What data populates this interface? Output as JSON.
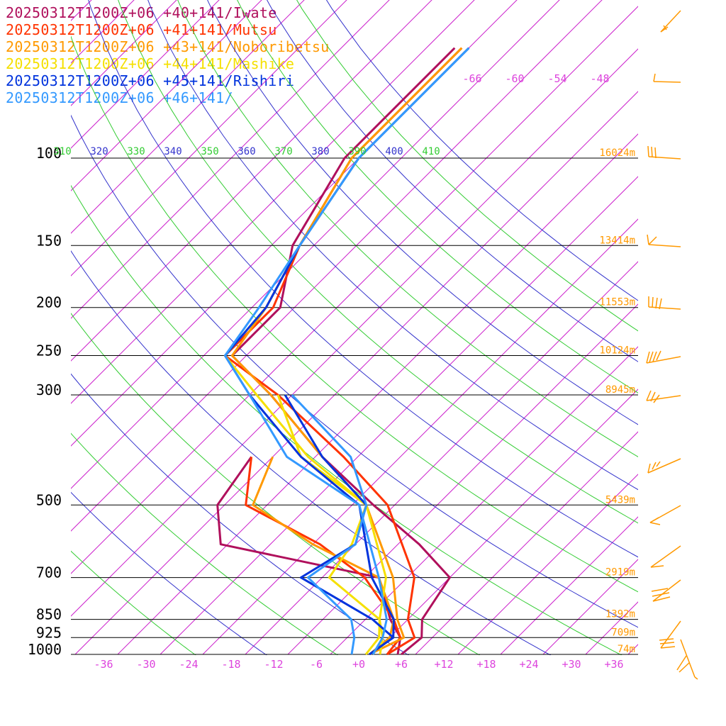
{
  "legend": [
    {
      "label": "20250312T1200Z+06 +40+141/Iwate",
      "color": "#b0105c"
    },
    {
      "label": "20250312T1200Z+06 +41+141/Mutsu",
      "color": "#ff3300"
    },
    {
      "label": "20250312T1200Z+06 +43+141/Noboribetsu",
      "color": "#ff9900"
    },
    {
      "label": "20250312T1200Z+06 +44+141/Mashike",
      "color": "#f5e000"
    },
    {
      "label": "20250312T1200Z+06 +45+141/Rishiri",
      "color": "#0033dd"
    },
    {
      "label": "20250312T1200Z+06 +46+141/",
      "color": "#3399ff"
    }
  ],
  "chart_data": {
    "type": "line",
    "xlabel": "",
    "ylabel": "",
    "pressure_levels": [
      "100",
      "150",
      "200",
      "250",
      "300",
      "500",
      "700",
      "850",
      "925",
      "1000"
    ],
    "temperature_ticks": [
      "-36",
      "-30",
      "-24",
      "-18",
      "-12",
      "-6",
      "+0",
      "+6",
      "+12",
      "+18",
      "+24",
      "+30",
      "+36"
    ],
    "upper_isotherm_labels": [
      "-66",
      "-60",
      "-54",
      "-48"
    ],
    "theta_labels": [
      {
        "text": "310",
        "color": "#33cc33"
      },
      {
        "text": "320",
        "color": "#3333cc"
      },
      {
        "text": "330",
        "color": "#33cc33"
      },
      {
        "text": "340",
        "color": "#3333cc"
      },
      {
        "text": "350",
        "color": "#33cc33"
      },
      {
        "text": "360",
        "color": "#3333cc"
      },
      {
        "text": "370",
        "color": "#33cc33"
      },
      {
        "text": "380",
        "color": "#3333cc"
      },
      {
        "text": "390",
        "color": "#33cc33"
      },
      {
        "text": "400",
        "color": "#3333cc"
      },
      {
        "text": "410",
        "color": "#33cc33"
      }
    ],
    "height_labels": [
      {
        "p": 100,
        "text": "16024m"
      },
      {
        "p": 150,
        "text": "13414m"
      },
      {
        "p": 200,
        "text": "11553m"
      },
      {
        "p": 250,
        "text": "10124m"
      },
      {
        "p": 300,
        "text": "8945m"
      },
      {
        "p": 500,
        "text": "5439m"
      },
      {
        "p": 700,
        "text": "2919m"
      },
      {
        "p": 850,
        "text": "1392m"
      },
      {
        "p": 925,
        "text": "709m"
      },
      {
        "p": 1000,
        "text": "74m"
      }
    ],
    "series": [
      {
        "color": "#b0105c",
        "temperature": [
          [
            1000,
            6
          ],
          [
            925,
            6.5
          ],
          [
            850,
            4
          ],
          [
            700,
            2
          ],
          [
            600,
            -7
          ],
          [
            500,
            -19
          ],
          [
            400,
            -33
          ],
          [
            300,
            -49
          ],
          [
            250,
            -60
          ],
          [
            200,
            -60
          ],
          [
            150,
            -67
          ],
          [
            100,
            -72
          ],
          [
            85,
            -72
          ],
          [
            60,
            -72
          ]
        ],
        "dewpoint": [
          [
            1000,
            5.5
          ],
          [
            925,
            3.5
          ],
          [
            850,
            -0.5
          ],
          [
            700,
            -8
          ],
          [
            600,
            -35
          ],
          [
            500,
            -41
          ],
          [
            400,
            -43
          ]
        ]
      },
      {
        "color": "#ff3300",
        "temperature": [
          [
            1000,
            4
          ],
          [
            925,
            5.5
          ],
          [
            850,
            2
          ],
          [
            700,
            -3
          ],
          [
            500,
            -17
          ],
          [
            400,
            -30
          ],
          [
            300,
            -48
          ],
          [
            250,
            -61
          ],
          [
            200,
            -61
          ],
          [
            150,
            -66
          ],
          [
            100,
            -71
          ],
          [
            60,
            -71
          ]
        ],
        "dewpoint": [
          [
            1000,
            4
          ],
          [
            925,
            3.5
          ],
          [
            850,
            0
          ],
          [
            700,
            -10
          ],
          [
            600,
            -21
          ],
          [
            500,
            -37
          ],
          [
            400,
            -43
          ]
        ]
      },
      {
        "color": "#ff9900",
        "temperature": [
          [
            1000,
            1.5
          ],
          [
            925,
            4
          ],
          [
            850,
            0.5
          ],
          [
            700,
            -6
          ],
          [
            500,
            -20
          ],
          [
            400,
            -33
          ],
          [
            300,
            -49
          ],
          [
            250,
            -60
          ],
          [
            200,
            -62
          ],
          [
            150,
            -66
          ],
          [
            100,
            -71
          ],
          [
            60,
            -71
          ]
        ],
        "dewpoint": [
          [
            1000,
            1.5
          ],
          [
            925,
            2
          ],
          [
            850,
            0
          ],
          [
            700,
            -8
          ],
          [
            600,
            -22
          ],
          [
            500,
            -36
          ],
          [
            400,
            -40
          ]
        ]
      },
      {
        "color": "#f5e000",
        "temperature": [
          [
            1000,
            1
          ],
          [
            925,
            0.5
          ],
          [
            850,
            -2
          ],
          [
            700,
            -7
          ],
          [
            500,
            -20
          ],
          [
            400,
            -35
          ],
          [
            300,
            -51
          ],
          [
            250,
            -61
          ],
          [
            200,
            -62
          ],
          [
            150,
            -66
          ],
          [
            100,
            -70
          ],
          [
            60,
            -70
          ]
        ],
        "dewpoint": [
          [
            1000,
            3
          ],
          [
            925,
            1
          ],
          [
            850,
            -2
          ],
          [
            700,
            -15
          ],
          [
            600,
            -16.5
          ],
          [
            500,
            -20
          ],
          [
            400,
            -36
          ],
          [
            300,
            -48
          ]
        ]
      },
      {
        "color": "#0033dd",
        "temperature": [
          [
            1000,
            1.5
          ],
          [
            925,
            2.5
          ],
          [
            850,
            0
          ],
          [
            700,
            -9
          ],
          [
            500,
            -21
          ],
          [
            400,
            -36
          ],
          [
            300,
            -52
          ],
          [
            250,
            -61
          ],
          [
            200,
            -62
          ],
          [
            150,
            -66
          ],
          [
            100,
            -70
          ],
          [
            60,
            -70
          ]
        ],
        "dewpoint": [
          [
            1000,
            1.5
          ],
          [
            925,
            2.5
          ],
          [
            850,
            -3
          ],
          [
            700,
            -19
          ],
          [
            600,
            -16
          ],
          [
            500,
            -20
          ],
          [
            400,
            -33
          ],
          [
            300,
            -47
          ]
        ]
      },
      {
        "color": "#3399ff",
        "temperature": [
          [
            1000,
            2
          ],
          [
            925,
            1
          ],
          [
            850,
            -1
          ],
          [
            700,
            -8
          ],
          [
            500,
            -21
          ],
          [
            400,
            -38
          ],
          [
            300,
            -52
          ],
          [
            250,
            -61
          ],
          [
            200,
            -63
          ],
          [
            150,
            -66
          ],
          [
            100,
            -70
          ],
          [
            60,
            -70
          ]
        ],
        "dewpoint": [
          [
            1000,
            -1
          ],
          [
            925,
            -3
          ],
          [
            850,
            -6
          ],
          [
            700,
            -18
          ],
          [
            600,
            -16
          ],
          [
            500,
            -20
          ],
          [
            400,
            -29
          ],
          [
            300,
            -46
          ]
        ]
      }
    ]
  }
}
